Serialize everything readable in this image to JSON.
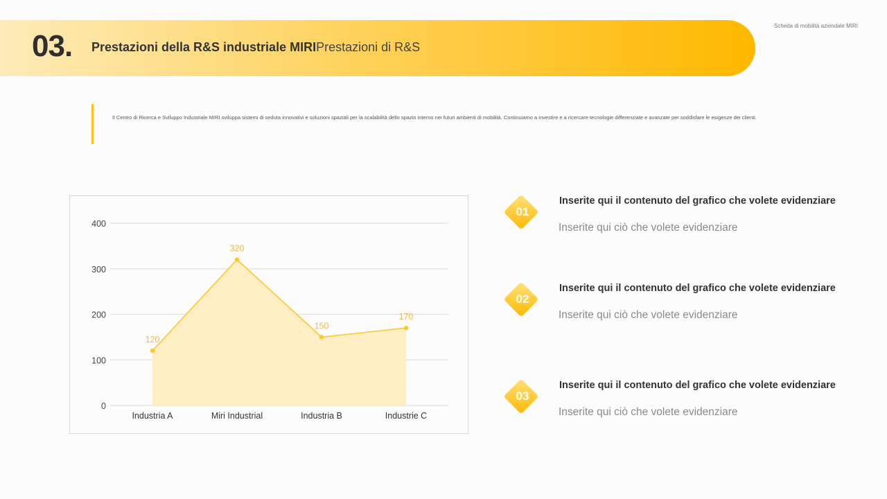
{
  "header": {
    "section_number": "03.",
    "title_main": "Prestazioni della R&S industriale MIRI",
    "title_sub": "Prestazioni di R&S",
    "corner_note": "Scheda di mobilità aziendale MIRI"
  },
  "intro": {
    "text": "Il Centro di Ricerca e Sviluppo Industriale MIRI sviluppa sistemi di seduta innovativi e soluzioni spaziali per la scalabilità dello spazio interno nei futuri ambienti di mobilità.  Continuiamo a investire e a ricercare tecnologie differenziate e avanzate per soddisfare le esigenze dei clienti."
  },
  "colors": {
    "accent": "#ffc21a",
    "line": "#ffc72c",
    "area": "#ffeec4",
    "label": "#f5b942",
    "grid": "#e4e4e4"
  },
  "chart_data": {
    "type": "area",
    "categories": [
      "Industria A",
      "Miri Industrial",
      "Industria B",
      "Industrie C"
    ],
    "values": [
      120,
      320,
      150,
      170
    ],
    "data_labels": [
      "120",
      "320",
      "150",
      "170"
    ],
    "ylim": [
      0,
      400
    ],
    "y_ticks": [
      "0",
      "100",
      "200",
      "300",
      "400"
    ],
    "grid": true,
    "legend": "none",
    "title": "",
    "xlabel": "",
    "ylabel": ""
  },
  "highlights": [
    {
      "number": "01",
      "title": "Inserite qui il contenuto del grafico che volete evidenziare",
      "subtitle": "Inserite qui ciò che volete evidenziare"
    },
    {
      "number": "02",
      "title": "Inserite qui il contenuto del grafico che volete evidenziare",
      "subtitle": "Inserite qui ciò che volete evidenziare"
    },
    {
      "number": "03",
      "title": "Inserite qui il contenuto del grafico che volete evidenziare",
      "subtitle": "Inserite qui ciò che volete evidenziare"
    }
  ]
}
